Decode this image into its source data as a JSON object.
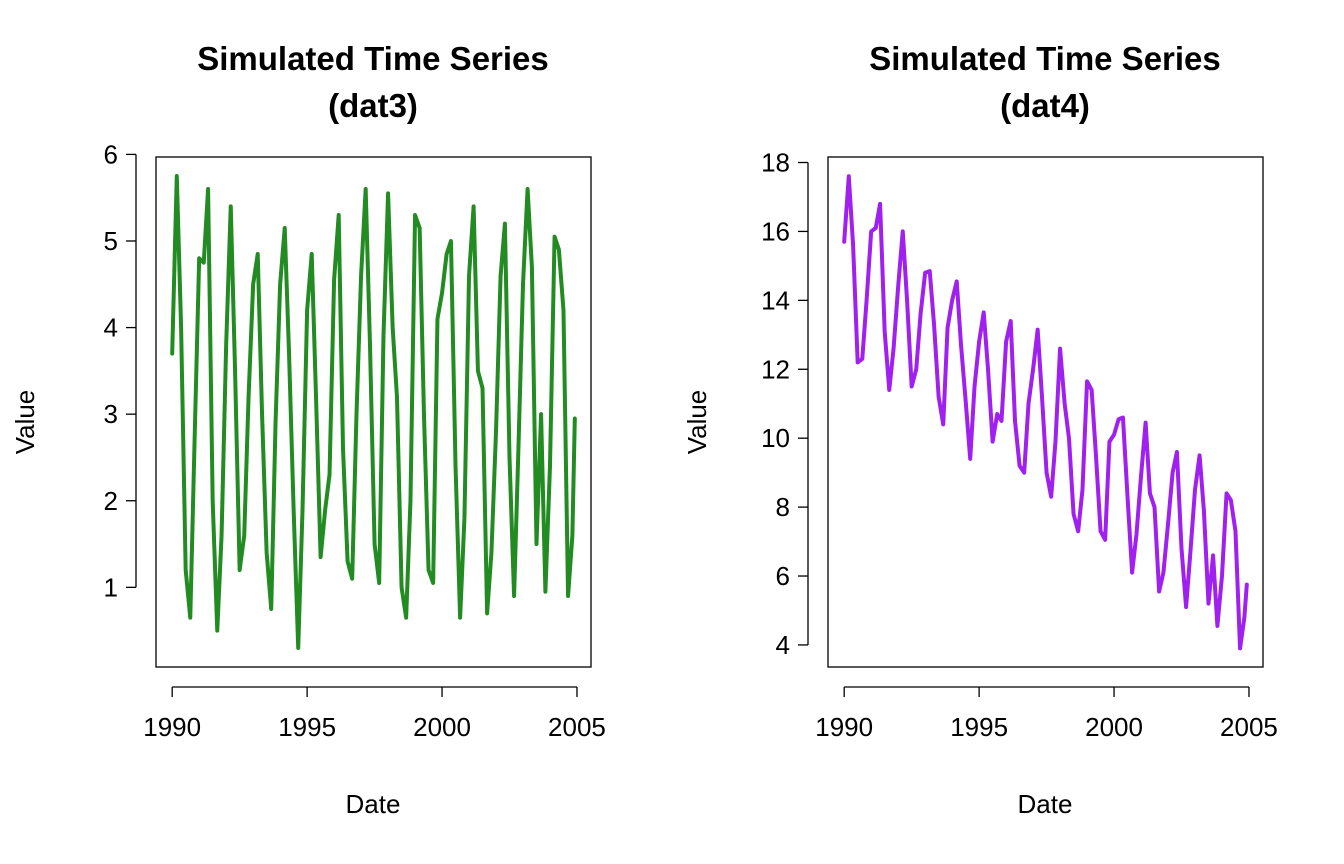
{
  "chart_data": [
    {
      "type": "line",
      "title": "Simulated Time Series",
      "subtitle": "(dat3)",
      "x_label": "Date",
      "y_label": "Value",
      "color": "#228B22",
      "x": [
        1990,
        1990.17,
        1990.33,
        1990.5,
        1990.67,
        1990.83,
        1991,
        1991.17,
        1991.33,
        1991.5,
        1991.67,
        1991.83,
        1992,
        1992.17,
        1992.33,
        1992.5,
        1992.67,
        1992.83,
        1993,
        1993.17,
        1993.33,
        1993.5,
        1993.67,
        1993.83,
        1994,
        1994.17,
        1994.33,
        1994.5,
        1994.67,
        1994.83,
        1995,
        1995.17,
        1995.33,
        1995.5,
        1995.67,
        1995.83,
        1996,
        1996.17,
        1996.33,
        1996.5,
        1996.67,
        1996.83,
        1997,
        1997.17,
        1997.33,
        1997.5,
        1997.67,
        1997.83,
        1998,
        1998.17,
        1998.33,
        1998.5,
        1998.67,
        1998.83,
        1999,
        1999.17,
        1999.33,
        1999.5,
        1999.67,
        1999.83,
        2000,
        2000.17,
        2000.33,
        2000.5,
        2000.67,
        2000.83,
        2001,
        2001.17,
        2001.33,
        2001.5,
        2001.67,
        2001.83,
        2002,
        2002.17,
        2002.33,
        2002.5,
        2002.67,
        2002.83,
        2003,
        2003.17,
        2003.33,
        2003.5,
        2003.67,
        2003.83,
        2004,
        2004.17,
        2004.33,
        2004.5,
        2004.67,
        2004.83,
        2004.92
      ],
      "values": [
        3.7,
        5.75,
        4.0,
        1.2,
        0.65,
        2.7,
        4.8,
        4.75,
        5.6,
        2.0,
        0.5,
        1.6,
        3.8,
        5.4,
        3.5,
        1.2,
        1.6,
        3.2,
        4.5,
        4.85,
        3.0,
        1.4,
        0.75,
        2.9,
        4.5,
        5.15,
        3.7,
        1.9,
        0.3,
        1.9,
        4.2,
        4.85,
        3.2,
        1.35,
        1.9,
        2.3,
        4.55,
        5.3,
        2.6,
        1.3,
        1.1,
        3.0,
        4.6,
        5.6,
        3.8,
        1.5,
        1.05,
        3.9,
        5.55,
        4.0,
        3.2,
        1.0,
        0.65,
        2.0,
        5.3,
        5.15,
        3.0,
        1.2,
        1.05,
        4.1,
        4.4,
        4.85,
        5.0,
        2.4,
        0.65,
        1.8,
        4.6,
        5.4,
        3.5,
        3.3,
        0.7,
        1.4,
        2.8,
        4.6,
        5.2,
        2.5,
        0.9,
        2.6,
        4.5,
        5.6,
        4.7,
        1.5,
        3.0,
        0.95,
        2.4,
        5.05,
        4.9,
        4.2,
        0.9,
        1.6,
        2.95
      ],
      "xlim": [
        1989.4,
        2005.52
      ],
      "xticks": [
        1990,
        1995,
        2000,
        2005
      ],
      "ylim": [
        0.08,
        5.97
      ],
      "yticks": [
        1,
        2,
        3,
        4,
        5,
        6
      ]
    },
    {
      "type": "line",
      "title": "Simulated Time Series",
      "subtitle": "(dat4)",
      "x_label": "Date",
      "y_label": "Value",
      "color": "#A020F0",
      "x": [
        1990,
        1990.17,
        1990.33,
        1990.5,
        1990.67,
        1990.83,
        1991,
        1991.17,
        1991.33,
        1991.5,
        1991.67,
        1991.83,
        1992,
        1992.17,
        1992.33,
        1992.5,
        1992.67,
        1992.83,
        1993,
        1993.17,
        1993.33,
        1993.5,
        1993.67,
        1993.83,
        1994,
        1994.17,
        1994.33,
        1994.5,
        1994.67,
        1994.83,
        1995,
        1995.17,
        1995.33,
        1995.5,
        1995.67,
        1995.83,
        1996,
        1996.17,
        1996.33,
        1996.5,
        1996.67,
        1996.83,
        1997,
        1997.17,
        1997.33,
        1997.5,
        1997.67,
        1997.83,
        1998,
        1998.17,
        1998.33,
        1998.5,
        1998.67,
        1998.83,
        1999,
        1999.17,
        1999.33,
        1999.5,
        1999.67,
        1999.83,
        2000,
        2000.17,
        2000.33,
        2000.5,
        2000.67,
        2000.83,
        2001,
        2001.17,
        2001.33,
        2001.5,
        2001.67,
        2001.83,
        2002,
        2002.17,
        2002.33,
        2002.5,
        2002.67,
        2002.83,
        2003,
        2003.17,
        2003.33,
        2003.5,
        2003.67,
        2003.83,
        2004,
        2004.17,
        2004.33,
        2004.5,
        2004.67,
        2004.83,
        2004.92
      ],
      "values": [
        15.7,
        17.6,
        15.6,
        12.2,
        12.3,
        14.0,
        16.0,
        16.1,
        16.8,
        13.1,
        11.4,
        12.6,
        14.4,
        16.0,
        14.0,
        11.5,
        12.0,
        13.6,
        14.8,
        14.85,
        13.3,
        11.2,
        10.4,
        13.2,
        14.0,
        14.55,
        12.7,
        11.1,
        9.4,
        11.5,
        12.8,
        13.65,
        12.0,
        9.9,
        10.7,
        10.5,
        12.8,
        13.4,
        10.5,
        9.2,
        9.0,
        11.0,
        12.0,
        13.15,
        11.2,
        9.0,
        8.3,
        9.9,
        12.6,
        11.0,
        10.0,
        7.8,
        7.3,
        8.5,
        11.65,
        11.4,
        9.5,
        7.3,
        7.05,
        9.9,
        10.1,
        10.55,
        10.6,
        8.3,
        6.1,
        7.2,
        8.9,
        10.45,
        8.4,
        8.0,
        5.55,
        6.1,
        7.5,
        9.0,
        9.6,
        6.8,
        5.1,
        6.7,
        8.5,
        9.5,
        7.9,
        5.2,
        6.6,
        4.55,
        6.0,
        8.4,
        8.2,
        7.3,
        3.9,
        4.8,
        5.75
      ],
      "xlim": [
        1989.4,
        2005.52
      ],
      "xticks": [
        1990,
        1995,
        2000,
        2005
      ],
      "ylim": [
        3.36,
        18.16
      ],
      "yticks": [
        4,
        6,
        8,
        10,
        12,
        14,
        16,
        18
      ]
    }
  ]
}
